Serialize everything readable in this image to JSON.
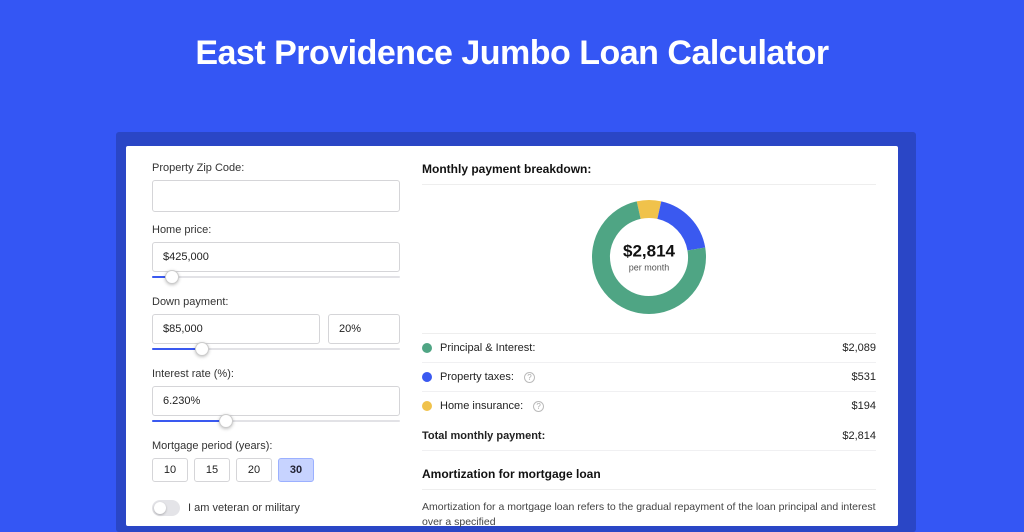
{
  "title": "East Providence Jumbo Loan Calculator",
  "colors": {
    "page_bg": "#3456f4",
    "shadow_bg": "#2a46c6",
    "panel_bg": "#ffffff",
    "slider_fill": "#3a59f0",
    "period_active_bg": "#c7d3ff"
  },
  "form": {
    "zip_label": "Property Zip Code:",
    "zip_value": "",
    "home_price_label": "Home price:",
    "home_price_value": "$425,000",
    "home_price_slider_pct": 8,
    "down_label": "Down payment:",
    "down_value": "$85,000",
    "down_pct": "20%",
    "down_slider_pct": 20,
    "rate_label": "Interest rate (%):",
    "rate_value": "6.230%",
    "rate_slider_pct": 30,
    "period_label": "Mortgage period (years):",
    "periods": [
      "10",
      "15",
      "20",
      "30"
    ],
    "period_active_index": 3,
    "veteran_label": "I am veteran or military",
    "veteran_on": false
  },
  "breakdown": {
    "title": "Monthly payment breakdown:",
    "donut": {
      "value": "$2,814",
      "sub": "per month",
      "segments": [
        {
          "label": "Principal & Interest",
          "color": "#4fa584",
          "fraction": 0.742
        },
        {
          "label": "Property taxes",
          "color": "#3a59f0",
          "fraction": 0.189
        },
        {
          "label": "Home insurance",
          "color": "#f0c24b",
          "fraction": 0.069
        }
      ],
      "stroke_width": 18
    },
    "rows": [
      {
        "label": "Principal & Interest:",
        "color": "#4fa584",
        "value": "$2,089",
        "info": false
      },
      {
        "label": "Property taxes:",
        "color": "#3a59f0",
        "value": "$531",
        "info": true
      },
      {
        "label": "Home insurance:",
        "color": "#f0c24b",
        "value": "$194",
        "info": true
      }
    ],
    "total_label": "Total monthly payment:",
    "total_value": "$2,814"
  },
  "amortization": {
    "title": "Amortization for mortgage loan",
    "text": "Amortization for a mortgage loan refers to the gradual repayment of the loan principal and interest over a specified"
  }
}
